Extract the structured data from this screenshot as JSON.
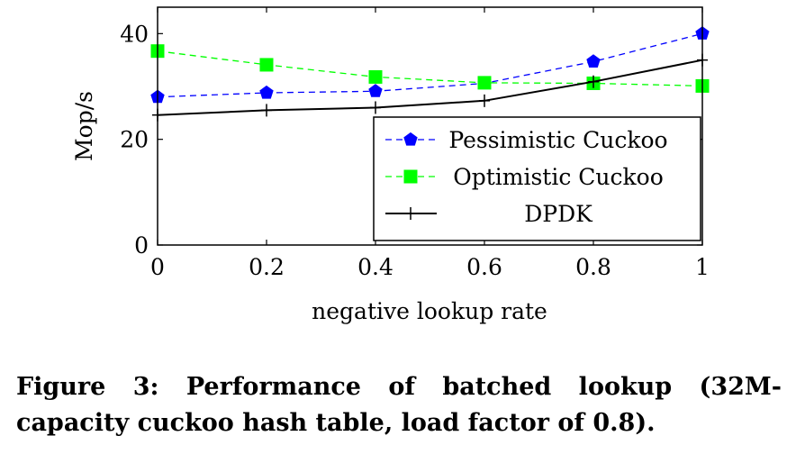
{
  "chart_data": {
    "type": "line",
    "xlabel": "negative lookup rate",
    "ylabel": "Mop/s",
    "x": [
      0,
      0.2,
      0.4,
      0.6,
      0.8,
      1
    ],
    "x_ticks": [
      "0",
      "0.2",
      "0.4",
      "0.6",
      "0.8",
      "1"
    ],
    "y_ticks": [
      "0",
      "20",
      "40"
    ],
    "y_tick_values": [
      0,
      20,
      40
    ],
    "xlim": [
      0,
      1
    ],
    "ylim": [
      0,
      45
    ],
    "legend_position": "bottom-right",
    "grid": false,
    "series": [
      {
        "name": "Pessimistic Cuckoo",
        "color": "#0000ff",
        "line_style": "dashed",
        "marker": "pentagon",
        "values": [
          28.0,
          28.8,
          29.1,
          30.6,
          34.7,
          40.0
        ]
      },
      {
        "name": "Optimistic Cuckoo",
        "color": "#00ff00",
        "line_style": "dashed",
        "marker": "square",
        "values": [
          36.7,
          34.1,
          31.8,
          30.7,
          30.6,
          30.1
        ]
      },
      {
        "name": "DPDK",
        "color": "#000000",
        "line_style": "solid",
        "marker": "plus",
        "values": [
          24.6,
          25.5,
          26.0,
          27.3,
          30.9,
          35.0
        ]
      }
    ]
  },
  "caption": {
    "line1": "Figure 3: Performance of batched lookup (32M-",
    "line2": "capacity cuckoo hash table, load factor of 0.8)."
  }
}
